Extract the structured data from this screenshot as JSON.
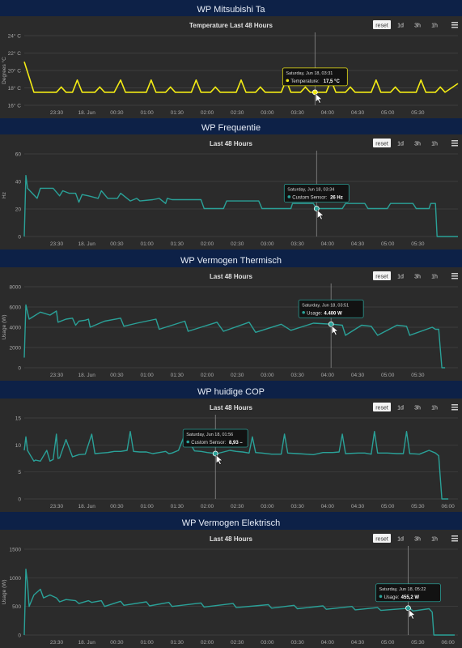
{
  "bg": "#0d2147",
  "panel_bg": "#2b2b2b",
  "zoom_buttons": {
    "reset": "reset",
    "d1": "1d",
    "h3": "3h",
    "h1": "1h"
  },
  "chart_data": [
    {
      "header": "WP Mitsubishi Ta",
      "title": "Temperature Last 48 Hours",
      "type": "line",
      "ylabel": "Degrees °C",
      "yticks": [
        "16° C",
        "18° C",
        "20° C",
        "22° C",
        "24° C"
      ],
      "ylim": [
        16,
        24
      ],
      "xticks": [
        "23:30",
        "18. Jun",
        "00:30",
        "01:00",
        "01:30",
        "02:00",
        "02:30",
        "03:00",
        "03:30",
        "04:00",
        "04:30",
        "05:00",
        "05:30"
      ],
      "color": "#f2ea14",
      "series": [
        {
          "name": "Temperature",
          "x": [
            0,
            0.3,
            0.7,
            1,
            1.15,
            1.3,
            1.5,
            1.65,
            1.8,
            2.2,
            2.35,
            2.5,
            2.8,
            3.0,
            3.15,
            3.3,
            3.8,
            3.95,
            4.1,
            4.4,
            4.55,
            4.7,
            5.2,
            5.35,
            5.5,
            5.8,
            5.95,
            6.1,
            6.6,
            6.75,
            6.9,
            7.2,
            7.35,
            7.5,
            8.0,
            8.15,
            8.3,
            8.6,
            8.75,
            8.9,
            9.4,
            9.55,
            9.7,
            10.0,
            10.15,
            10.3,
            10.8,
            10.95,
            11.1,
            11.4,
            11.55,
            11.7,
            12.2,
            12.35,
            12.5,
            12.8,
            12.95,
            13.1,
            13.5
          ],
          "y": [
            21,
            17.5,
            17.5,
            17.5,
            18.1,
            17.5,
            17.5,
            18.9,
            17.5,
            17.5,
            18.1,
            17.5,
            17.5,
            18.9,
            17.5,
            17.5,
            17.5,
            18.9,
            17.5,
            17.5,
            18.1,
            17.5,
            17.5,
            18.9,
            17.5,
            17.5,
            18.1,
            17.5,
            17.5,
            18.9,
            17.5,
            17.5,
            18.1,
            17.5,
            17.5,
            18.9,
            17.5,
            17.5,
            18.1,
            17.5,
            17.5,
            18.9,
            17.5,
            17.5,
            18.1,
            17.5,
            17.5,
            18.9,
            17.5,
            17.5,
            18.1,
            17.5,
            17.5,
            18.9,
            17.5,
            17.5,
            18.1,
            17.5,
            18.5
          ]
        }
      ],
      "tooltip": {
        "date": "Saturday, Jun 18, 03:31",
        "label": "Temperature:",
        "value": "17,5 °C"
      },
      "cursor_x": 9.05
    },
    {
      "header": "WP Frequentie",
      "title": "Last 48 Hours",
      "type": "line",
      "ylabel": "Hz",
      "yticks": [
        "0",
        "20",
        "40",
        "60"
      ],
      "ylim": [
        0,
        65
      ],
      "xticks": [
        "23:30",
        "18. Jun",
        "00:30",
        "01:00",
        "01:30",
        "02:00",
        "02:30",
        "03:00",
        "03:30",
        "04:00",
        "04:30",
        "05:00",
        "05:30"
      ],
      "color": "#2aa198",
      "series": [
        {
          "name": "Custom Sensor",
          "x": [
            0,
            0.05,
            0.1,
            0.25,
            0.4,
            0.5,
            0.7,
            0.9,
            1.1,
            1.2,
            1.4,
            1.6,
            1.7,
            1.8,
            2.0,
            2.3,
            2.4,
            2.6,
            2.9,
            3.0,
            3.3,
            3.5,
            3.6,
            4.0,
            4.2,
            4.4,
            4.45,
            4.6,
            5.5,
            5.6,
            6.2,
            6.3,
            7.3,
            7.4,
            8.3,
            8.35,
            9.0,
            9.1,
            9.9,
            10.0,
            10.6,
            10.7,
            11.3,
            11.4,
            12.1,
            12.2,
            12.6,
            12.65,
            12.8,
            12.85,
            13.5
          ],
          "y": [
            0,
            48,
            38,
            34,
            30,
            38,
            38,
            38,
            32,
            36,
            34,
            34,
            27,
            33,
            32,
            30,
            36,
            30,
            30,
            34,
            28,
            30,
            28,
            29,
            30,
            26,
            30,
            29,
            29,
            22,
            22,
            28,
            28,
            22,
            22,
            26,
            26,
            22,
            22,
            26,
            26,
            22,
            22,
            26,
            26,
            22,
            22,
            26,
            26,
            0,
            0
          ]
        }
      ],
      "tooltip": {
        "date": "Saturday, Jun 18, 03:34",
        "label": "Custom Sensor:",
        "value": "26 Hz"
      },
      "cursor_x": 9.1
    },
    {
      "header": "WP Vermogen Thermisch",
      "title": "Last 48 Hours",
      "type": "line",
      "ylabel": "Usage (W)",
      "yticks": [
        "0",
        "2000",
        "4000",
        "6000",
        "8000"
      ],
      "ylim": [
        0,
        8000
      ],
      "xticks": [
        "23:30",
        "18. Jun",
        "00:30",
        "01:00",
        "01:30",
        "02:00",
        "02:30",
        "03:00",
        "03:30",
        "04:00",
        "04:30",
        "05:00",
        "05:30"
      ],
      "color": "#2aa198",
      "series": [
        {
          "name": "Usage",
          "x": [
            0,
            0.05,
            0.15,
            0.5,
            0.8,
            1.0,
            1.05,
            1.3,
            1.5,
            1.6,
            1.7,
            1.9,
            2.0,
            2.05,
            2.5,
            3.0,
            3.1,
            3.5,
            3.8,
            4.1,
            4.2,
            5.0,
            5.1,
            6.0,
            6.2,
            7.0,
            7.2,
            8.0,
            8.3,
            9.0,
            9.6,
            9.9,
            10.0,
            10.5,
            10.8,
            11.0,
            11.6,
            11.9,
            12.0,
            12.7,
            12.8,
            12.9,
            13.0,
            13.1
          ],
          "y": [
            1000,
            6200,
            4800,
            5500,
            5200,
            5600,
            4500,
            4800,
            4900,
            4200,
            4600,
            4700,
            4800,
            4000,
            4600,
            4900,
            4100,
            4400,
            4600,
            4800,
            3800,
            4600,
            3600,
            4500,
            3600,
            4500,
            3500,
            4300,
            3700,
            4400,
            4300,
            4200,
            3200,
            4200,
            4100,
            3200,
            4200,
            4100,
            3200,
            4000,
            3800,
            3800,
            0,
            0
          ]
        }
      ],
      "tooltip": {
        "date": "Saturday, Jun 18, 03:51",
        "label": "Usage:",
        "value": "4.400 W"
      },
      "cursor_x": 9.55
    },
    {
      "header": "WP huidige COP",
      "title": "Last 48 Hours",
      "type": "line",
      "ylabel": "",
      "yticks": [
        "0",
        "5",
        "10",
        "15"
      ],
      "ylim": [
        0,
        15
      ],
      "xticks": [
        "23:30",
        "18. Jun",
        "00:30",
        "01:00",
        "01:30",
        "02:00",
        "02:30",
        "03:00",
        "03:30",
        "04:00",
        "04:30",
        "05:00",
        "05:30",
        "06:00"
      ],
      "color": "#2aa198",
      "series": [
        {
          "name": "Custom Sensor",
          "x": [
            0,
            0.05,
            0.1,
            0.2,
            0.3,
            0.35,
            0.5,
            0.7,
            0.8,
            0.9,
            1.0,
            1.05,
            1.1,
            1.3,
            1.5,
            1.6,
            1.7,
            1.9,
            2.1,
            2.2,
            2.4,
            2.6,
            2.7,
            2.8,
            3.0,
            3.2,
            3.3,
            3.4,
            3.6,
            3.8,
            4.0,
            4.2,
            4.4,
            4.5,
            4.6,
            4.8,
            5.0,
            5.3,
            5.5,
            5.7,
            6.0,
            6.2,
            6.4,
            6.6,
            6.8,
            7.0,
            7.1,
            7.2,
            7.4,
            7.7,
            8.0,
            8.1,
            8.2,
            8.5,
            9.0,
            9.3,
            9.6,
            9.8,
            9.9,
            10.0,
            10.4,
            10.6,
            10.8,
            10.9,
            11.0,
            11.3,
            11.6,
            11.8,
            11.9,
            12.0,
            12.3,
            12.6,
            12.8,
            12.9,
            13.0,
            13.2
          ],
          "y": [
            9,
            11.5,
            9,
            8,
            7,
            7.2,
            7,
            9,
            7,
            7.3,
            12,
            7.5,
            7.6,
            11,
            7.8,
            8,
            8.2,
            8.3,
            12,
            8.4,
            8.5,
            8.6,
            8.7,
            8.8,
            8.8,
            9,
            12.5,
            8.8,
            8.7,
            8.7,
            8.4,
            8.6,
            8.8,
            8.4,
            8.5,
            9,
            12,
            8.9,
            8.8,
            8.6,
            8.4,
            8.7,
            9,
            8.8,
            8.7,
            8.5,
            11.5,
            8.6,
            8.5,
            8.3,
            8.3,
            12,
            8.5,
            8.4,
            8.2,
            8.6,
            8.6,
            8.7,
            12,
            8.4,
            8.5,
            8.5,
            8.3,
            12.5,
            8.5,
            8.5,
            8.4,
            8.4,
            12.5,
            8.4,
            8.3,
            9,
            8.5,
            8,
            0,
            0
          ]
        }
      ],
      "tooltip": {
        "date": "Saturday, Jun 18, 01:56",
        "label": "Custom Sensor:",
        "value": "8,93 –"
      },
      "cursor_x": 5.95
    },
    {
      "header": "WP Vermogen Elektrisch",
      "title": "Last 48 Hours",
      "type": "line",
      "ylabel": "Usage (W)",
      "yticks": [
        "0",
        "500",
        "1000",
        "1500"
      ],
      "ylim": [
        0,
        1500
      ],
      "xticks": [
        "23:30",
        "18. Jun",
        "00:30",
        "01:00",
        "01:30",
        "02:00",
        "02:30",
        "03:00",
        "03:30",
        "04:00",
        "04:30",
        "05:00",
        "05:30",
        "06:00"
      ],
      "color": "#2aa198",
      "series": [
        {
          "name": "Usage",
          "x": [
            0,
            0.05,
            0.1,
            0.15,
            0.3,
            0.5,
            0.6,
            0.8,
            1.0,
            1.1,
            1.3,
            1.6,
            1.7,
            2.0,
            2.1,
            2.4,
            2.5,
            3.0,
            3.1,
            3.8,
            3.9,
            4.5,
            4.6,
            5.5,
            5.6,
            6.5,
            6.6,
            7.6,
            7.7,
            8.4,
            8.5,
            9.3,
            9.4,
            10.2,
            10.3,
            11.0,
            11.1,
            12.0,
            12.1,
            12.6,
            12.7,
            12.75,
            12.9,
            13.0,
            13.4
          ],
          "y": [
            0,
            1150,
            900,
            500,
            700,
            800,
            650,
            700,
            650,
            580,
            620,
            600,
            550,
            600,
            570,
            600,
            500,
            590,
            520,
            580,
            510,
            570,
            500,
            560,
            490,
            550,
            480,
            530,
            470,
            520,
            460,
            510,
            450,
            500,
            440,
            480,
            430,
            470,
            420,
            460,
            400,
            0,
            0,
            0,
            0
          ]
        }
      ],
      "tooltip": {
        "date": "Saturday, Jun 18, 05:22",
        "label": "Usage:",
        "value": "455,2 W"
      },
      "cursor_x": 11.95
    }
  ]
}
